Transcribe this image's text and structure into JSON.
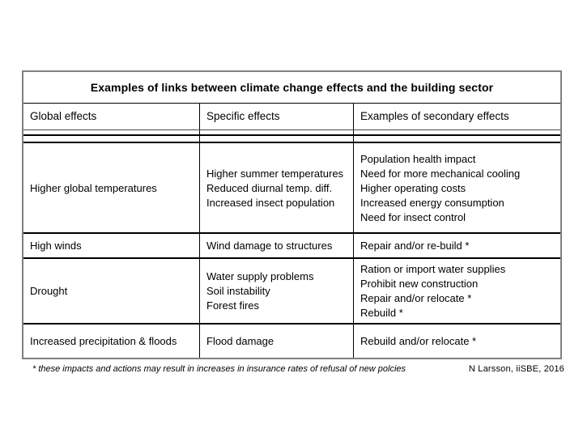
{
  "table": {
    "title": "Examples of links between climate change effects and the building sector",
    "headers": [
      "Global effects",
      "Specific effects",
      "Examples of secondary effects"
    ],
    "rows": [
      {
        "global": "Higher global temperatures",
        "specific": [
          "Higher summer temperatures",
          "Reduced diurnal temp. diff.",
          "Increased insect population"
        ],
        "secondary": [
          "Population health impact",
          "Need for more mechanical cooling",
          "Higher operating costs",
          "Increased energy consumption",
          "Need for insect control"
        ]
      },
      {
        "global": "High winds",
        "specific": [
          "Wind damage to structures"
        ],
        "secondary": [
          "Repair and/or re-build *"
        ]
      },
      {
        "global": "Drought",
        "specific": [
          "Water supply problems",
          "Soil instability",
          "Forest fires"
        ],
        "secondary": [
          "Ration or import water supplies",
          "Prohibit new construction",
          "Repair and/or relocate *",
          "Rebuild *"
        ]
      },
      {
        "global": "Increased precipitation & floods",
        "specific": [
          "Flood damage"
        ],
        "secondary": [
          "Rebuild and/or relocate *"
        ]
      }
    ]
  },
  "footnote": {
    "left": "* these impacts and actions may result in increases in insurance rates of refusal of new polcies",
    "right": "N Larsson, iiSBE, 2016"
  },
  "colors": {
    "outer_border": "#7f7f7f",
    "rule": "#000000",
    "text": "#000000",
    "background": "#ffffff"
  }
}
